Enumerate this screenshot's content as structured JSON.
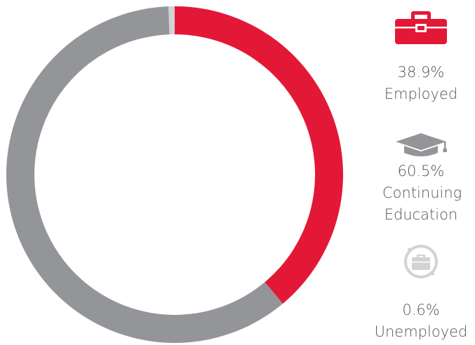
{
  "chart_data": {
    "type": "donut",
    "categories": [
      "Employed",
      "Continuing Education",
      "Unemployed"
    ],
    "values": [
      38.9,
      60.5,
      0.6
    ],
    "value_labels": [
      "38.9%",
      "60.5%",
      "0.6%"
    ],
    "colors": [
      "#e31837",
      "#939598",
      "#d1d3d4"
    ]
  }
}
